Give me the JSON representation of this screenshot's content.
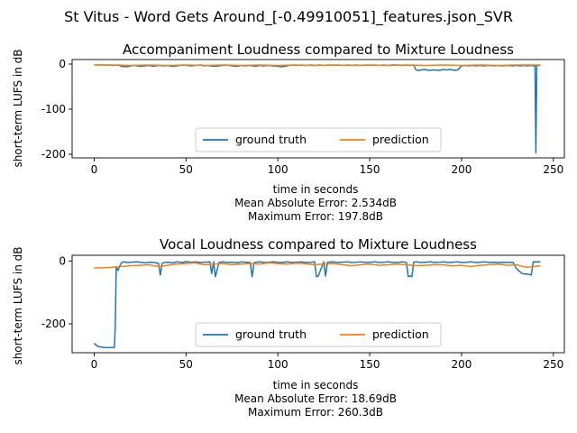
{
  "figure": {
    "suptitle": "St Vitus - Word Gets Around_[-0.49910051]_features.json_SVR"
  },
  "colors": {
    "ground_truth": "#1f77b4",
    "prediction": "#ff7f0e"
  },
  "chart_data": [
    {
      "type": "line",
      "title": "Accompaniment Loudness compared to Mixture Loudness",
      "xlabel": "time in seconds",
      "ylabel": "short-term LUFS in dB",
      "xlim": [
        -12,
        256
      ],
      "ylim": [
        -208,
        10
      ],
      "xticks": [
        0,
        50,
        100,
        150,
        200,
        250
      ],
      "yticks": [
        0,
        -100,
        -200
      ],
      "legend": {
        "position": "lower-center",
        "ncol": 2
      },
      "error_lines": [
        "Mean Absolute Error: 2.534dB",
        "Maximum Error: 197.8dB"
      ],
      "series": [
        {
          "name": "ground truth",
          "color": "#1f77b4",
          "x": [
            0,
            5,
            8,
            10,
            13,
            15,
            18,
            20,
            22,
            25,
            28,
            30,
            32,
            35,
            38,
            40,
            42,
            45,
            48,
            50,
            53,
            55,
            58,
            60,
            62,
            65,
            68,
            70,
            72,
            75,
            78,
            80,
            82,
            85,
            88,
            90,
            92,
            95,
            97,
            100,
            102,
            104,
            106,
            108,
            110,
            113,
            115,
            118,
            120,
            123,
            125,
            128,
            130,
            133,
            135,
            138,
            140,
            143,
            145,
            148,
            150,
            153,
            155,
            157,
            160,
            162,
            165,
            168,
            170,
            172,
            174,
            175,
            176,
            177,
            178,
            180,
            182,
            185,
            188,
            190,
            192,
            194,
            196,
            198,
            200,
            202,
            204,
            206,
            208,
            210,
            212,
            215,
            218,
            220,
            222,
            225,
            228,
            230,
            232,
            234,
            236,
            238,
            239,
            240,
            240.5,
            241,
            242,
            243
          ],
          "y": [
            -2,
            -2,
            -2,
            -3,
            -2,
            -5,
            -6,
            -4,
            -3,
            -5,
            -4,
            -3,
            -5,
            -3,
            -4,
            -3,
            -5,
            -4,
            -2,
            -3,
            -4,
            -3,
            -2,
            -4,
            -3,
            -5,
            -4,
            -3,
            -2,
            -4,
            -5,
            -3,
            -4,
            -3,
            -5,
            -3,
            -4,
            -3,
            -4,
            -5,
            -6,
            -5,
            -3,
            -2,
            -3,
            -2,
            -3,
            -2,
            -3,
            -2,
            -3,
            -2,
            -3,
            -2,
            -3,
            -2,
            -3,
            -2,
            -3,
            -2,
            -3,
            -2,
            -3,
            -2,
            -3,
            -2,
            -2,
            -3,
            -2,
            -3,
            -2,
            -12,
            -14,
            -14,
            -13,
            -12,
            -14,
            -13,
            -14,
            -12,
            -13,
            -12,
            -14,
            -13,
            -4,
            -3,
            -4,
            -3,
            -4,
            -3,
            -4,
            -3,
            -4,
            -3,
            -4,
            -3,
            -4,
            -3,
            -4,
            -3,
            -4,
            -3,
            -4,
            -3,
            -197,
            -3,
            -3,
            -3
          ]
        },
        {
          "name": "prediction",
          "color": "#ff7f0e",
          "x": [
            0,
            10,
            20,
            30,
            40,
            50,
            60,
            70,
            80,
            90,
            100,
            110,
            120,
            130,
            140,
            150,
            160,
            170,
            180,
            190,
            200,
            210,
            220,
            230,
            240,
            243
          ],
          "y": [
            -2,
            -2,
            -3,
            -2,
            -3,
            -2,
            -3,
            -2,
            -3,
            -2,
            -3,
            -2,
            -3,
            -2,
            -3,
            -2,
            -3,
            -2,
            -3,
            -2,
            -3,
            -2,
            -3,
            -2,
            -2,
            -2
          ]
        }
      ]
    },
    {
      "type": "line",
      "title": "Vocal Loudness compared to Mixture Loudness",
      "xlabel": "time in seconds",
      "ylabel": "short-term LUFS in dB",
      "xlim": [
        -12,
        256
      ],
      "ylim": [
        -292,
        18
      ],
      "xticks": [
        0,
        50,
        100,
        150,
        200,
        250
      ],
      "yticks": [
        0,
        -200
      ],
      "legend": {
        "position": "lower-center",
        "ncol": 2
      },
      "error_lines": [
        "Mean Absolute Error: 18.69dB",
        "Maximum Error: 260.3dB"
      ],
      "series": [
        {
          "name": "ground truth",
          "color": "#1f77b4",
          "x": [
            0,
            2,
            5,
            8,
            11,
            11.5,
            12,
            13,
            14,
            15,
            16,
            18,
            20,
            23,
            25,
            28,
            30,
            33,
            35,
            36,
            37,
            38,
            40,
            43,
            45,
            48,
            50,
            53,
            55,
            58,
            60,
            63,
            64,
            65,
            66,
            68,
            70,
            73,
            75,
            78,
            80,
            83,
            85,
            86,
            87,
            88,
            90,
            93,
            95,
            98,
            100,
            103,
            105,
            108,
            110,
            113,
            115,
            118,
            120,
            121,
            122,
            125,
            126,
            127,
            130,
            133,
            135,
            138,
            140,
            143,
            145,
            148,
            150,
            153,
            155,
            158,
            160,
            163,
            166,
            168,
            170,
            171,
            172,
            173,
            174,
            175,
            178,
            180,
            183,
            185,
            188,
            190,
            193,
            195,
            198,
            200,
            203,
            205,
            208,
            210,
            213,
            215,
            218,
            220,
            223,
            225,
            228,
            230,
            233,
            235,
            236,
            238,
            239,
            240,
            241,
            243
          ],
          "y": [
            -262,
            -272,
            -275,
            -276,
            -275,
            -200,
            -20,
            -30,
            -15,
            -5,
            -3,
            -5,
            -4,
            -3,
            -4,
            -6,
            -4,
            -5,
            -8,
            -45,
            -8,
            -5,
            -4,
            -6,
            -3,
            -5,
            -2,
            -4,
            -3,
            -5,
            -4,
            -3,
            -40,
            -3,
            -50,
            -4,
            -3,
            -5,
            -4,
            -6,
            -3,
            -4,
            -5,
            -50,
            -6,
            -4,
            -3,
            -5,
            -4,
            -3,
            -5,
            -4,
            -3,
            -5,
            -4,
            -3,
            -5,
            -4,
            -3,
            -50,
            -48,
            -3,
            -48,
            -4,
            -3,
            -5,
            -4,
            -3,
            -5,
            -4,
            -3,
            -5,
            -4,
            -3,
            -5,
            -4,
            -3,
            -5,
            -4,
            -3,
            -5,
            -50,
            -48,
            -50,
            -4,
            -3,
            -5,
            -4,
            -3,
            -5,
            -4,
            -3,
            -5,
            -4,
            -3,
            -5,
            -4,
            -3,
            -5,
            -4,
            -3,
            -5,
            -4,
            -5,
            -4,
            -5,
            -4,
            -25,
            -40,
            -42,
            -42,
            -45,
            -3,
            -3,
            -3,
            -3
          ]
        },
        {
          "name": "prediction",
          "color": "#ff7f0e",
          "x": [
            0,
            5,
            10,
            15,
            20,
            25,
            30,
            35,
            40,
            45,
            50,
            55,
            60,
            65,
            70,
            75,
            80,
            85,
            90,
            95,
            100,
            105,
            110,
            115,
            120,
            125,
            130,
            135,
            140,
            145,
            150,
            155,
            160,
            165,
            170,
            175,
            180,
            185,
            190,
            195,
            200,
            205,
            210,
            215,
            220,
            225,
            230,
            235,
            240,
            243
          ],
          "y": [
            -22,
            -22,
            -20,
            -18,
            -15,
            -14,
            -12,
            -18,
            -14,
            -10,
            -8,
            -6,
            -12,
            -10,
            -8,
            -12,
            -10,
            -8,
            -10,
            -6,
            -8,
            -10,
            -7,
            -9,
            -12,
            -10,
            -8,
            -12,
            -15,
            -12,
            -10,
            -14,
            -12,
            -10,
            -12,
            -15,
            -14,
            -12,
            -12,
            -16,
            -14,
            -18,
            -14,
            -12,
            -10,
            -14,
            -12,
            -20,
            -18,
            -15
          ]
        }
      ]
    }
  ]
}
